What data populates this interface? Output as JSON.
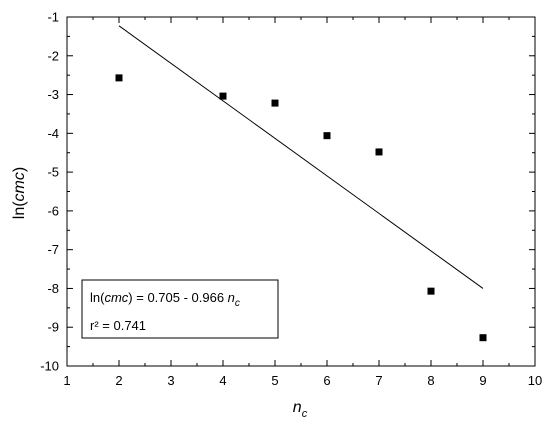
{
  "chart_data": {
    "type": "scatter",
    "title": "",
    "xlabel": "n",
    "xlabel_sub": "c",
    "ylabel_prefix": "ln(",
    "ylabel_italic": "cmc",
    "ylabel_suffix": ")",
    "xlim": [
      1,
      10
    ],
    "ylim": [
      -10,
      -1
    ],
    "xticks": [
      1,
      2,
      3,
      4,
      5,
      6,
      7,
      8,
      9,
      10
    ],
    "yticks": [
      -1,
      -2,
      -3,
      -4,
      -5,
      -6,
      -7,
      -8,
      -9,
      -10
    ],
    "grid": false,
    "series": [
      {
        "points": [
          {
            "x": 2,
            "y": -2.57
          },
          {
            "x": 4,
            "y": -3.04
          },
          {
            "x": 5,
            "y": -3.22
          },
          {
            "x": 6,
            "y": -4.06
          },
          {
            "x": 7,
            "y": -4.48
          },
          {
            "x": 8,
            "y": -8.07
          },
          {
            "x": 9,
            "y": -9.27
          }
        ],
        "marker": "square",
        "color": "#000000"
      }
    ],
    "fit_line": {
      "x": [
        2,
        9
      ],
      "y": [
        -1.227,
        -8.0
      ],
      "color": "#000000"
    },
    "annotation": {
      "line1_prefix": "ln(",
      "line1_italic": "cmc",
      "line1_mid": ") = 0.705 - 0.966 ",
      "line1_var": "n",
      "line1_sub": "c",
      "line2": "r² = 0.741"
    }
  }
}
